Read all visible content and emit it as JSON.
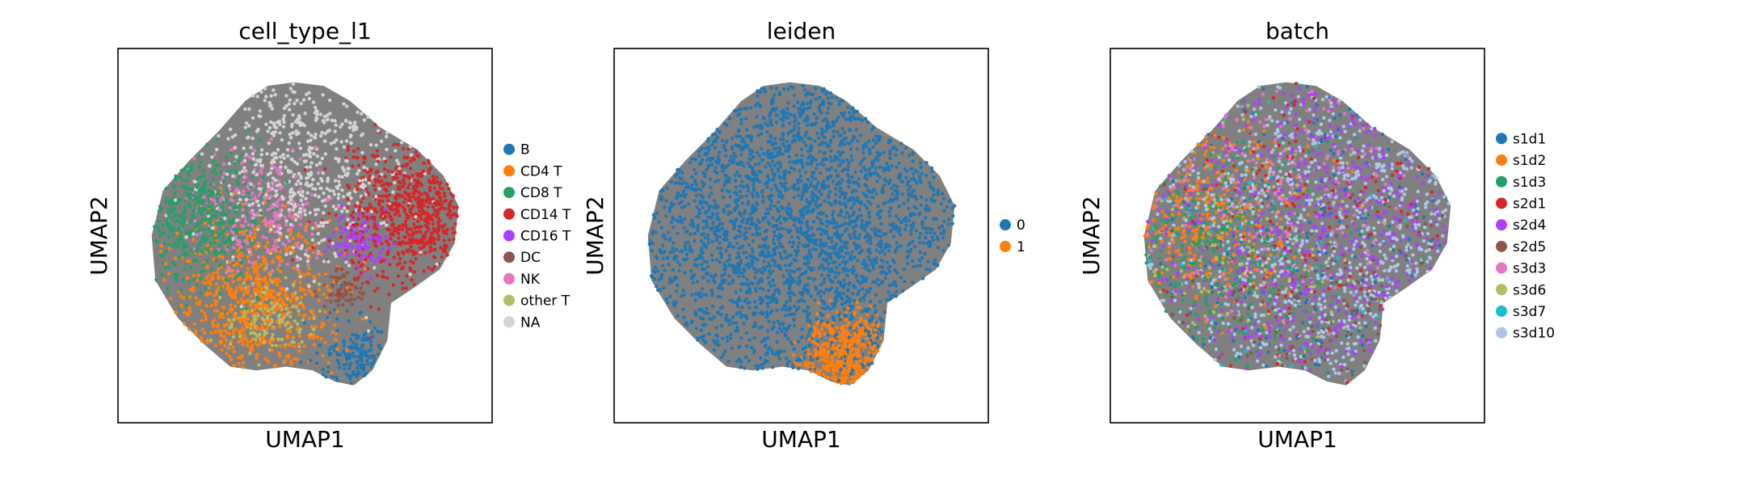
{
  "chart_data": [
    {
      "type": "scatter",
      "title": "cell_type_l1",
      "xlabel": "UMAP1",
      "ylabel": "UMAP2",
      "legend_position": "right",
      "background_edges_color": "#808080",
      "categories": [
        "B",
        "CD4 T",
        "CD8 T",
        "CD14 T",
        "CD16 T",
        "DC",
        "NK",
        "other T",
        "NA"
      ],
      "colors": [
        "#1f77b4",
        "#ff7f0e",
        "#279e68",
        "#d62728",
        "#aa40fc",
        "#8c564b",
        "#e377c2",
        "#b5bd61",
        "#d3d3d3"
      ]
    },
    {
      "type": "scatter",
      "title": "leiden",
      "xlabel": "UMAP1",
      "ylabel": "UMAP2",
      "legend_position": "right",
      "background_edges_color": "#808080",
      "categories": [
        "0",
        "1"
      ],
      "colors": [
        "#1f77b4",
        "#ff7f0e"
      ]
    },
    {
      "type": "scatter",
      "title": "batch",
      "xlabel": "UMAP1",
      "ylabel": "UMAP2",
      "legend_position": "right",
      "background_edges_color": "#808080",
      "categories": [
        "s1d1",
        "s1d2",
        "s1d3",
        "s2d1",
        "s2d4",
        "s2d5",
        "s3d3",
        "s3d6",
        "s3d7",
        "s3d10"
      ],
      "colors": [
        "#1f77b4",
        "#ff7f0e",
        "#279e68",
        "#d62728",
        "#aa40fc",
        "#8c564b",
        "#e377c2",
        "#b5bd61",
        "#17becf",
        "#aec7e8"
      ]
    }
  ]
}
